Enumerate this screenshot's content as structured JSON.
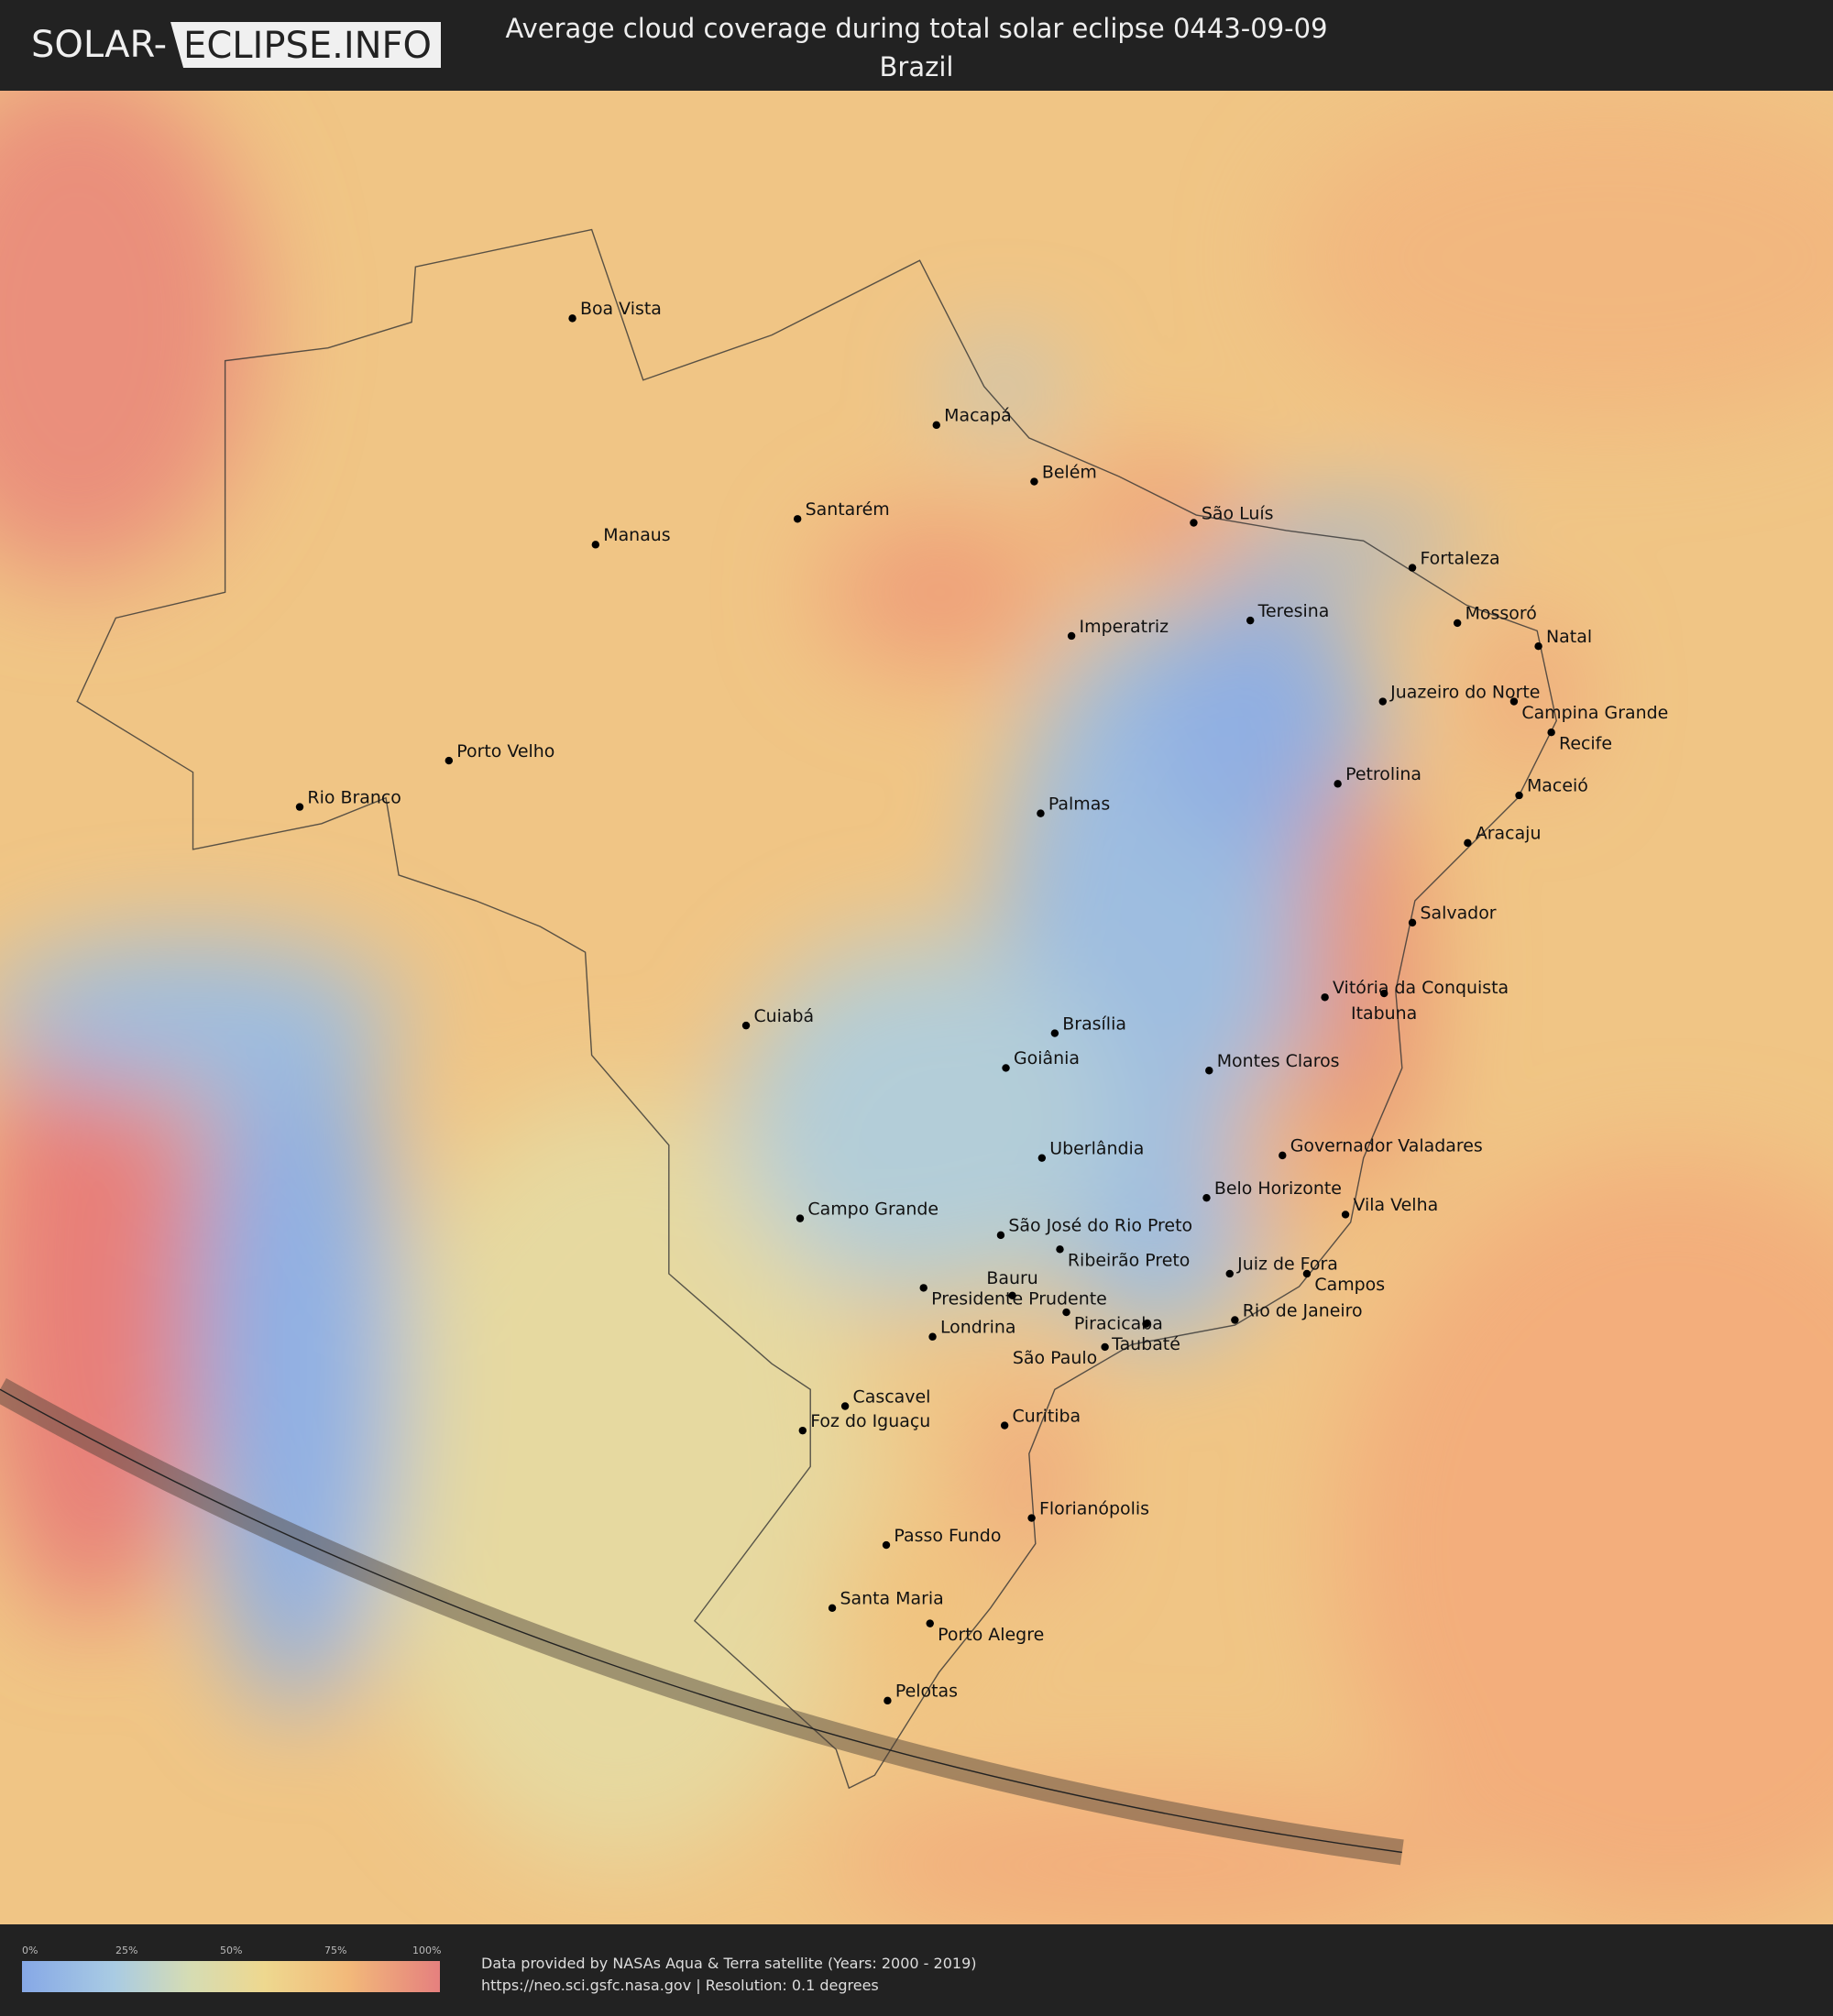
{
  "header": {
    "logo_left": "SOLAR-",
    "logo_right": "ECLIPSE.INFO",
    "title": "Average cloud coverage during total solar eclipse 0443-09-09",
    "subtitle": "Brazil"
  },
  "legend": {
    "ticks": [
      "0%",
      "25%",
      "50%",
      "75%",
      "100%"
    ],
    "colors": [
      "#86a8e6",
      "#a9cbe3",
      "#eed88f",
      "#f2b97a",
      "#e5807e"
    ]
  },
  "footer": {
    "credit_line1": "Data provided by NASAs Aqua & Terra satellite (Years: 2000 - 2019)",
    "credit_line2": "https://neo.sci.gsfc.nasa.gov | Resolution: 0.1 degrees"
  },
  "cities": [
    "Boa Vista",
    "Macapá",
    "Belém",
    "Santarém",
    "Manaus",
    "São Luís",
    "Fortaleza",
    "Mossoró",
    "Natal",
    "Teresina",
    "Imperatriz",
    "Juazeiro do Norte",
    "Campina Grande",
    "Recife",
    "Petrolina",
    "Maceió",
    "Palmas",
    "Aracaju",
    "Porto Velho",
    "Rio Branco",
    "Salvador",
    "Vitória da Conquista",
    "Itabuna",
    "Cuiabá",
    "Brasília",
    "Goiânia",
    "Montes Claros",
    "Governador Valadares",
    "Uberlândia",
    "Belo Horizonte",
    "Vila Velha",
    "Campo Grande",
    "São José do Rio Preto",
    "Ribeirão Preto",
    "Juiz de Fora",
    "Campos",
    "Presidente Prudente",
    "Bauru",
    "Piracicaba",
    "Taubaté",
    "Rio de Janeiro",
    "Londrina",
    "São Paulo",
    "Cascavel",
    "Foz do Iguaçu",
    "Curitiba",
    "Florianópolis",
    "Passo Fundo",
    "Santa Maria",
    "Porto Alegre",
    "Pelotas"
  ]
}
